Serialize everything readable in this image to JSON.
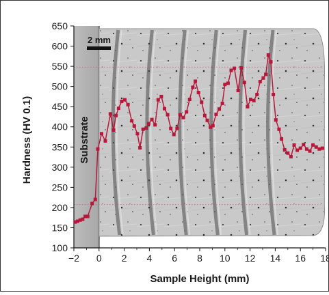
{
  "chart_data": {
    "type": "line",
    "xlabel": "Sample Height (mm)",
    "ylabel": "Hardness (HV 0.1)",
    "xlim": [
      -2,
      18
    ],
    "ylim": [
      100,
      650
    ],
    "xticks": [
      -2,
      0,
      2,
      4,
      6,
      8,
      10,
      12,
      14,
      16,
      18
    ],
    "yticks": [
      100,
      150,
      200,
      250,
      300,
      350,
      400,
      450,
      500,
      550,
      600,
      650
    ],
    "x_tick_labels": [
      "−2",
      "0",
      "2",
      "4",
      "6",
      "8",
      "10",
      "12",
      "14",
      "16",
      "18"
    ],
    "y_tick_labels": [
      "100",
      "150",
      "200",
      "250",
      "300",
      "350",
      "400",
      "450",
      "500",
      "550",
      "600",
      "650"
    ],
    "substrate_label": "Substrate",
    "scale_bar_label": "2 mm",
    "reference_lines_y": [
      548,
      207
    ],
    "background": "micrograph of cross-section with layered deposit bands",
    "grid": false,
    "series": [
      {
        "color": "#b8173a",
        "marker": "square",
        "points": [
          [
            -1.9,
            164
          ],
          [
            -1.7,
            166
          ],
          [
            -1.5,
            169
          ],
          [
            -1.3,
            171
          ],
          [
            -1.1,
            178
          ],
          [
            -0.9,
            178
          ],
          [
            -0.55,
            210
          ],
          [
            -0.3,
            220
          ],
          [
            -0.1,
            345
          ],
          [
            0.2,
            383
          ],
          [
            0.5,
            365
          ],
          [
            0.9,
            432
          ],
          [
            1.15,
            392
          ],
          [
            1.35,
            428
          ],
          [
            1.55,
            446
          ],
          [
            1.8,
            463
          ],
          [
            2.05,
            467
          ],
          [
            2.3,
            455
          ],
          [
            2.6,
            415
          ],
          [
            2.8,
            402
          ],
          [
            3.05,
            383
          ],
          [
            3.25,
            348
          ],
          [
            3.5,
            394
          ],
          [
            3.75,
            397
          ],
          [
            3.95,
            408
          ],
          [
            4.2,
            418
          ],
          [
            4.45,
            405
          ],
          [
            4.7,
            467
          ],
          [
            4.95,
            475
          ],
          [
            5.2,
            445
          ],
          [
            5.45,
            430
          ],
          [
            5.7,
            396
          ],
          [
            5.95,
            381
          ],
          [
            6.2,
            396
          ],
          [
            6.45,
            430
          ],
          [
            6.7,
            423
          ],
          [
            6.95,
            437
          ],
          [
            7.2,
            468
          ],
          [
            7.45,
            498
          ],
          [
            7.65,
            513
          ],
          [
            7.9,
            485
          ],
          [
            8.15,
            461
          ],
          [
            8.4,
            428
          ],
          [
            8.6,
            416
          ],
          [
            8.85,
            399
          ],
          [
            9.05,
            403
          ],
          [
            9.3,
            431
          ],
          [
            9.55,
            444
          ],
          [
            9.8,
            458
          ],
          [
            10.0,
            505
          ],
          [
            10.25,
            508
          ],
          [
            10.5,
            540
          ],
          [
            10.75,
            545
          ],
          [
            11.05,
            490
          ],
          [
            11.3,
            546
          ],
          [
            11.55,
            510
          ],
          [
            11.8,
            450
          ],
          [
            12.05,
            468
          ],
          [
            12.3,
            465
          ],
          [
            12.55,
            480
          ],
          [
            12.8,
            512
          ],
          [
            13.05,
            521
          ],
          [
            13.25,
            530
          ],
          [
            13.45,
            578
          ],
          [
            13.65,
            561
          ],
          [
            13.85,
            480
          ],
          [
            14.05,
            417
          ],
          [
            14.3,
            394
          ],
          [
            14.5,
            370
          ],
          [
            14.75,
            343
          ],
          [
            15.0,
            335
          ],
          [
            15.25,
            326
          ],
          [
            15.5,
            355
          ],
          [
            15.75,
            342
          ],
          [
            16.0,
            347
          ],
          [
            16.25,
            356
          ],
          [
            16.5,
            345
          ],
          [
            16.75,
            340
          ],
          [
            17.0,
            355
          ],
          [
            17.25,
            350
          ],
          [
            17.5,
            345
          ],
          [
            17.75,
            347
          ]
        ]
      }
    ]
  }
}
